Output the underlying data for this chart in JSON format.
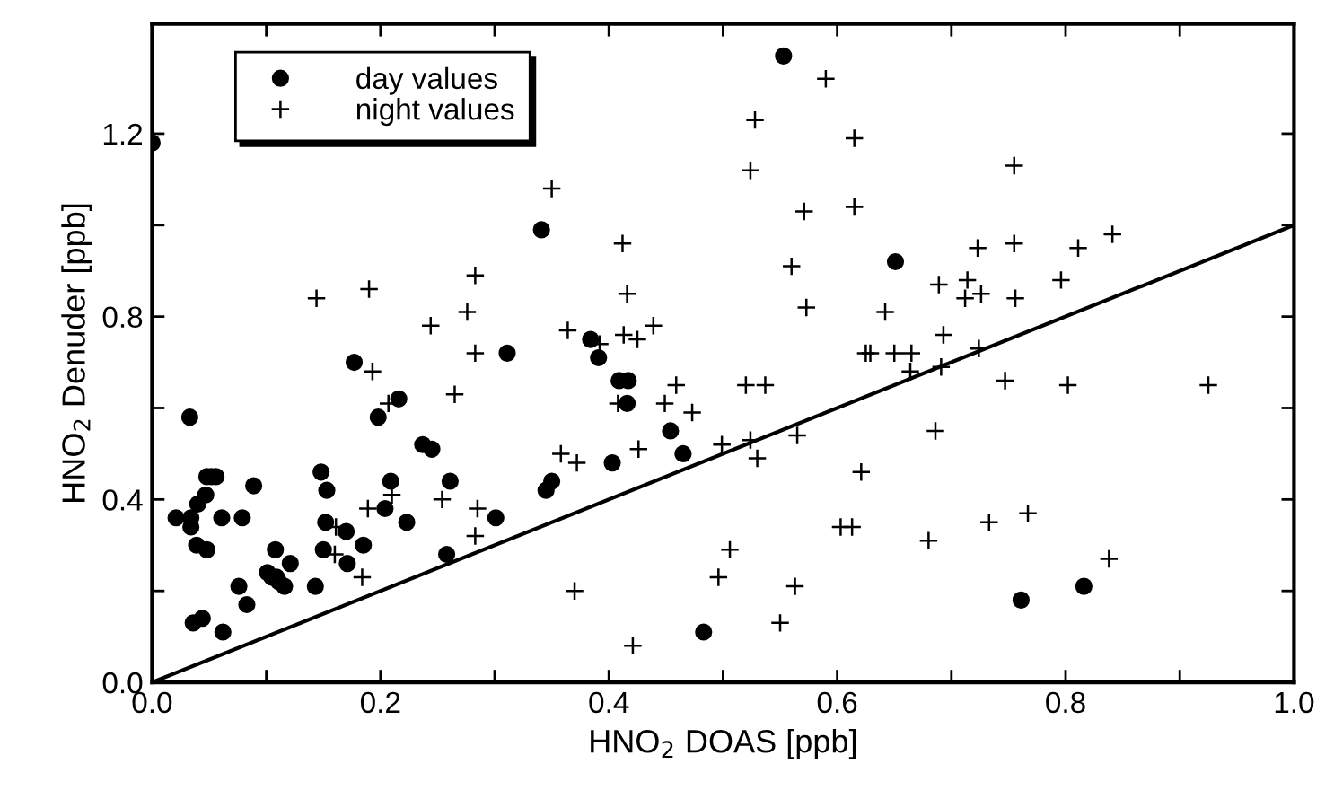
{
  "chart_data": {
    "type": "scatter",
    "xlabel": "HNO$_{2}$ DOAS [ppb]",
    "ylabel": "HNO$_{2}$ Denuder [ppb]",
    "xlim": [
      0,
      1.0
    ],
    "ylim": [
      0,
      1.44
    ],
    "xticks": [
      {
        "value": 0,
        "label": "0.0"
      },
      {
        "value": 0.1,
        "label": null
      },
      {
        "value": 0.2,
        "label": "0.2"
      },
      {
        "value": 0.3,
        "label": null
      },
      {
        "value": 0.4,
        "label": "0.4"
      },
      {
        "value": 0.5,
        "label": null
      },
      {
        "value": 0.6,
        "label": "0.6"
      },
      {
        "value": 0.7,
        "label": null
      },
      {
        "value": 0.8,
        "label": "0.8"
      },
      {
        "value": 0.9,
        "label": null
      },
      {
        "value": 1.0,
        "label": "1.0"
      }
    ],
    "yticks": [
      {
        "value": 0,
        "label": "0.0"
      },
      {
        "value": 0.2,
        "label": null
      },
      {
        "value": 0.4,
        "label": "0.4"
      },
      {
        "value": 0.6,
        "label": null
      },
      {
        "value": 0.8,
        "label": "0.8"
      },
      {
        "value": 1.0,
        "label": null
      },
      {
        "value": 1.2,
        "label": "1.2"
      }
    ],
    "grid": false,
    "legend": "top left",
    "series": [
      {
        "name": "day values",
        "marker": "circle",
        "color": "#000000",
        "x": [
          0.0,
          0.033,
          0.021,
          0.034,
          0.034,
          0.04,
          0.047,
          0.048,
          0.052,
          0.056,
          0.061,
          0.039,
          0.048,
          0.036,
          0.044,
          0.062,
          0.079,
          0.089,
          0.076,
          0.083,
          0.108,
          0.101,
          0.105,
          0.109,
          0.111,
          0.116,
          0.121,
          0.143,
          0.148,
          0.153,
          0.152,
          0.15,
          0.17,
          0.171,
          0.185,
          0.177,
          0.198,
          0.204,
          0.209,
          0.216,
          0.223,
          0.237,
          0.245,
          0.258,
          0.261,
          0.301,
          0.311,
          0.341,
          0.345,
          0.35,
          0.384,
          0.391,
          0.403,
          0.409,
          0.417,
          0.416,
          0.454,
          0.465,
          0.483,
          0.553,
          0.651,
          0.761,
          0.816
        ],
        "values": [
          1.18,
          0.58,
          0.36,
          0.36,
          0.34,
          0.39,
          0.41,
          0.45,
          0.45,
          0.45,
          0.36,
          0.3,
          0.29,
          0.13,
          0.14,
          0.11,
          0.36,
          0.43,
          0.21,
          0.17,
          0.29,
          0.24,
          0.23,
          0.23,
          0.22,
          0.21,
          0.26,
          0.21,
          0.46,
          0.42,
          0.35,
          0.29,
          0.33,
          0.26,
          0.3,
          0.7,
          0.58,
          0.38,
          0.44,
          0.62,
          0.35,
          0.52,
          0.51,
          0.28,
          0.44,
          0.36,
          0.72,
          0.99,
          0.42,
          0.44,
          0.75,
          0.71,
          0.48,
          0.66,
          0.66,
          0.61,
          0.55,
          0.5,
          0.11,
          1.37,
          0.92,
          0.18,
          0.21
        ]
      },
      {
        "name": "night values",
        "marker": "cross",
        "color": "#000000",
        "x": [
          0.144,
          0.19,
          0.244,
          0.193,
          0.207,
          0.189,
          0.21,
          0.254,
          0.161,
          0.16,
          0.184,
          0.265,
          0.283,
          0.276,
          0.283,
          0.285,
          0.283,
          0.35,
          0.364,
          0.358,
          0.372,
          0.37,
          0.392,
          0.412,
          0.416,
          0.413,
          0.425,
          0.439,
          0.408,
          0.426,
          0.421,
          0.449,
          0.459,
          0.473,
          0.496,
          0.499,
          0.506,
          0.52,
          0.524,
          0.524,
          0.528,
          0.53,
          0.537,
          0.55,
          0.56,
          0.563,
          0.565,
          0.571,
          0.573,
          0.59,
          0.603,
          0.613,
          0.615,
          0.615,
          0.621,
          0.625,
          0.629,
          0.642,
          0.65,
          0.665,
          0.664,
          0.68,
          0.686,
          0.689,
          0.691,
          0.693,
          0.712,
          0.714,
          0.723,
          0.724,
          0.726,
          0.733,
          0.747,
          0.755,
          0.755,
          0.756,
          0.767,
          0.796,
          0.802,
          0.811,
          0.838,
          0.841,
          0.925
        ],
        "values": [
          0.84,
          0.86,
          0.78,
          0.68,
          0.61,
          0.38,
          0.41,
          0.4,
          0.34,
          0.28,
          0.23,
          0.63,
          0.89,
          0.81,
          0.72,
          0.38,
          0.32,
          1.08,
          0.77,
          0.5,
          0.48,
          0.2,
          0.74,
          0.96,
          0.85,
          0.76,
          0.75,
          0.78,
          0.61,
          0.51,
          0.08,
          0.61,
          0.65,
          0.59,
          0.23,
          0.52,
          0.29,
          0.65,
          1.12,
          0.53,
          1.23,
          0.49,
          0.65,
          0.13,
          0.91,
          0.21,
          0.54,
          1.03,
          0.82,
          1.32,
          0.34,
          0.34,
          1.19,
          1.04,
          0.46,
          0.72,
          0.72,
          0.81,
          0.72,
          0.72,
          0.68,
          0.31,
          0.55,
          0.87,
          0.69,
          0.76,
          0.84,
          0.88,
          0.95,
          0.73,
          0.85,
          0.35,
          0.66,
          1.13,
          0.96,
          0.84,
          0.37,
          0.88,
          0.65,
          0.95,
          0.27,
          0.98,
          0.65
        ]
      },
      {
        "type": "line",
        "color": "#000000",
        "line_style": "solid",
        "marker": "none",
        "x": [
          0,
          1.0
        ],
        "values": [
          0,
          1.0
        ]
      }
    ]
  }
}
